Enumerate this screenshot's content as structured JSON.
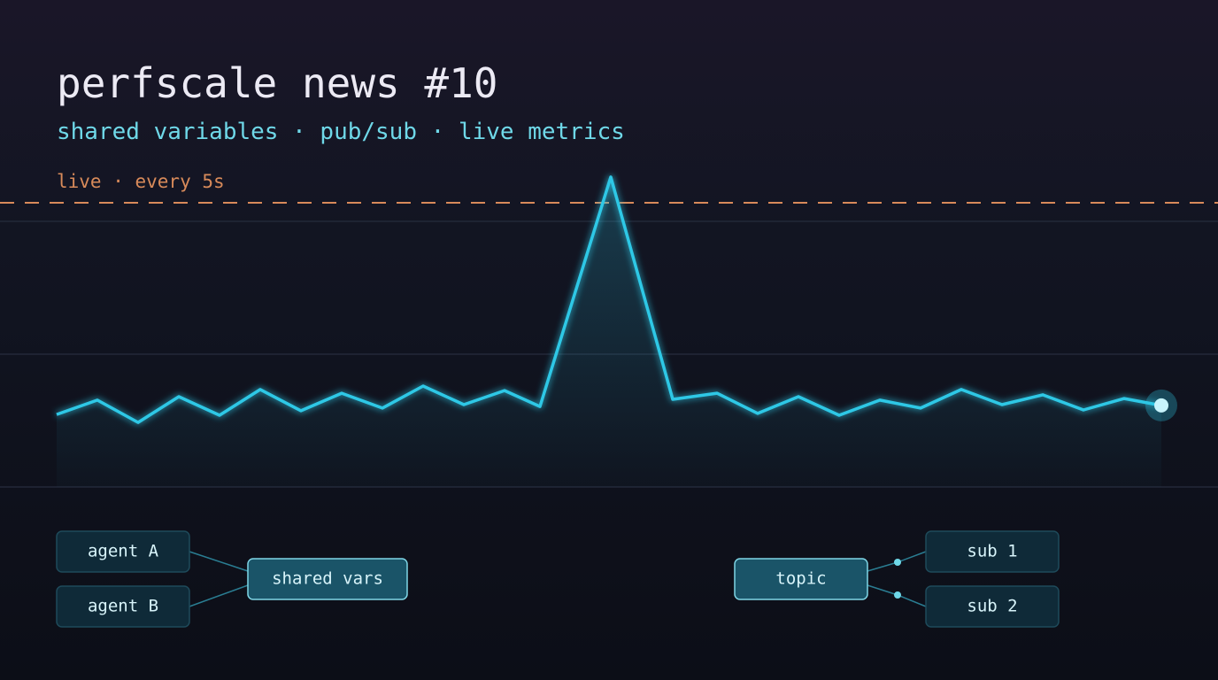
{
  "chart_data": {
    "type": "line",
    "title": "perfscale news #10",
    "subtitle": "shared variables · pub/sub · live metrics",
    "annotation": "live · every 5s",
    "x": [
      0,
      46,
      92,
      138,
      184,
      230,
      276,
      322,
      368,
      414,
      460,
      506,
      546,
      626,
      696,
      746,
      792,
      838,
      884,
      930,
      976,
      1022,
      1068,
      1114,
      1160,
      1206,
      1248
    ],
    "values": [
      27.3,
      32.7,
      24.3,
      34,
      27,
      36.7,
      28.7,
      35.3,
      29.7,
      38,
      31,
      36.3,
      30.3,
      116.7,
      33,
      35.3,
      27.7,
      34,
      27,
      32.7,
      29.7,
      36.7,
      31,
      34.7,
      29,
      33.3,
      30.7
    ],
    "xlim": [
      0,
      1248
    ],
    "ylim": [
      0,
      120
    ],
    "color": "#2ec8e6",
    "reference_line": 107,
    "reference_color": "#d88a5a"
  },
  "diagram": {
    "nodes": [
      {
        "label": "agent A"
      },
      {
        "label": "agent B"
      },
      {
        "label": "shared vars"
      },
      {
        "label": "topic"
      },
      {
        "label": "sub 1"
      },
      {
        "label": "sub 2"
      }
    ]
  }
}
